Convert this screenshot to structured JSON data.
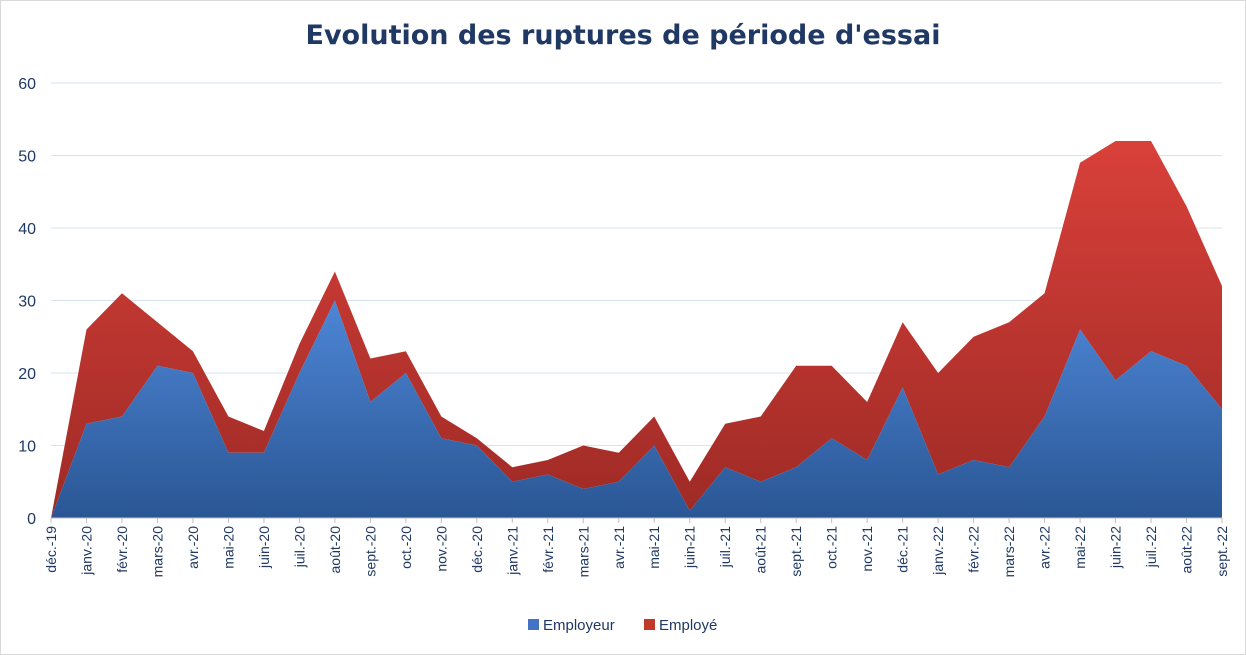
{
  "chart_data": {
    "type": "area",
    "stacked": true,
    "title": "Evolution des ruptures de période d'essai",
    "categories": [
      "déc.-19",
      "janv.-20",
      "févr.-20",
      "mars-20",
      "avr.-20",
      "mai-20",
      "juin-20",
      "juil.-20",
      "août-20",
      "sept.-20",
      "oct.-20",
      "nov.-20",
      "déc.-20",
      "janv.-21",
      "févr.-21",
      "mars-21",
      "avr.-21",
      "mai-21",
      "juin-21",
      "juil.-21",
      "août-21",
      "sept.-21",
      "oct.-21",
      "nov.-21",
      "déc.-21",
      "janv.-22",
      "févr.-22",
      "mars-22",
      "avr.-22",
      "mai-22",
      "juin-22",
      "juil.-22",
      "août-22",
      "sept.-22"
    ],
    "series": [
      {
        "name": "Employeur",
        "color": "#4472c4",
        "values": [
          0,
          13,
          14,
          21,
          20,
          9,
          9,
          20,
          30,
          16,
          20,
          11,
          10,
          5,
          6,
          4,
          5,
          10,
          1,
          7,
          5,
          7,
          11,
          8,
          18,
          6,
          8,
          7,
          14,
          26,
          19,
          23,
          21,
          15
        ]
      },
      {
        "name": "Employé",
        "color": "#c0392b",
        "values": [
          0,
          13,
          17,
          6,
          3,
          5,
          3,
          4,
          4,
          6,
          3,
          3,
          1,
          2,
          2,
          6,
          4,
          4,
          4,
          6,
          9,
          14,
          10,
          8,
          9,
          14,
          17,
          20,
          17,
          23,
          33,
          29,
          22,
          17
        ]
      }
    ],
    "ylim": [
      0,
      60
    ],
    "yticks": [
      0,
      10,
      20,
      30,
      40,
      50,
      60
    ],
    "grid": true,
    "legend": "bottom"
  }
}
